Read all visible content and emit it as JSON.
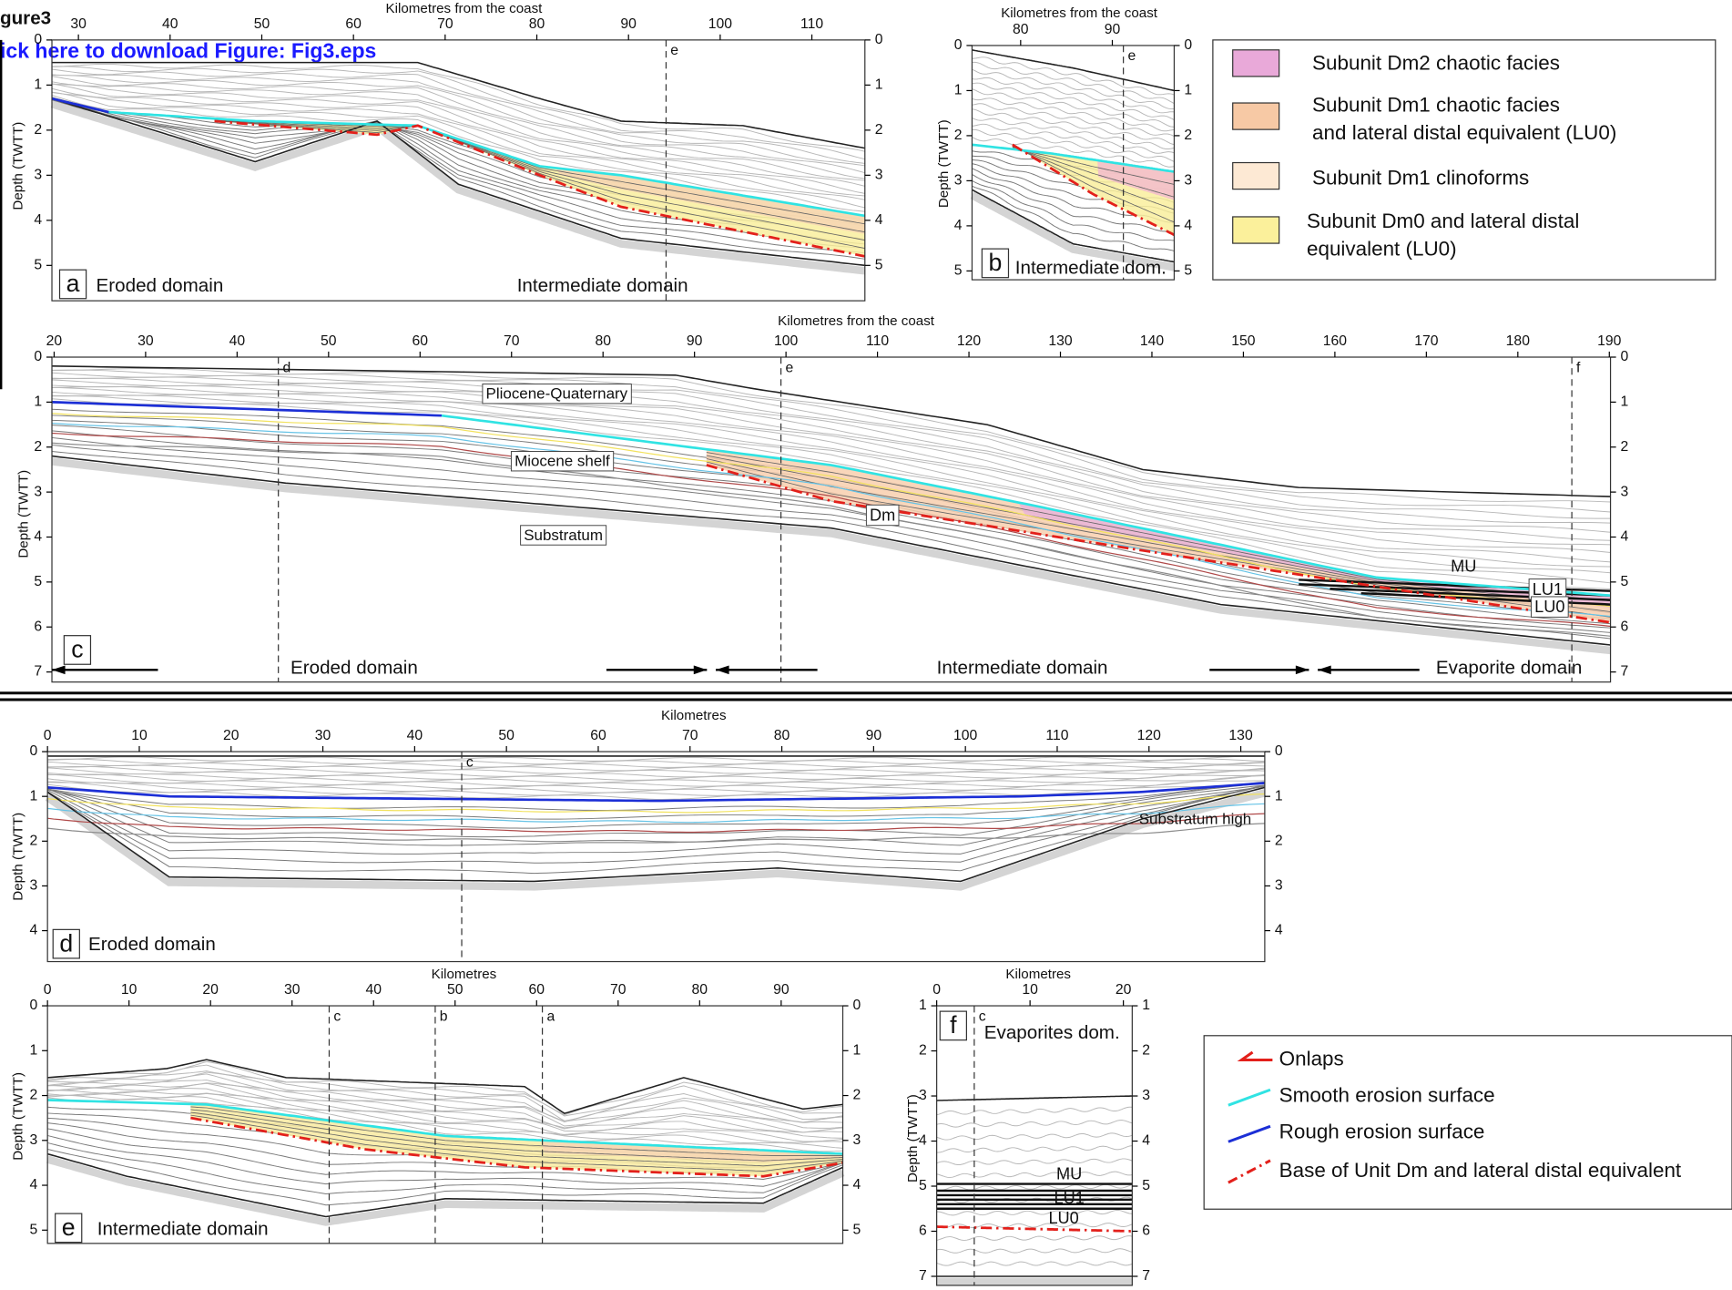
{
  "header": {
    "title": "gure3",
    "link": "ick here to download Figure: Fig3.eps"
  },
  "panels": [
    {
      "label": "a",
      "x_axis_title": "Kilometres from the coast",
      "y_axis_title": "Depth (TWTT)",
      "xticks": [
        30,
        40,
        50,
        60,
        70,
        80,
        90,
        100,
        110
      ],
      "yticks": [
        0,
        1,
        2,
        3,
        4,
        5
      ],
      "domains": [
        "Eroded domain",
        "Intermediate domain"
      ],
      "profile_markers": [
        "e"
      ]
    },
    {
      "label": "b",
      "x_axis_title": "Kilometres from the coast",
      "y_axis_title": "Depth (TWTT)",
      "xticks": [
        80,
        90
      ],
      "yticks": [
        0,
        1,
        2,
        3,
        4,
        5
      ],
      "domains": [
        "Intermediate dom."
      ],
      "profile_markers": [
        "e"
      ]
    },
    {
      "label": "c",
      "x_axis_title": "Kilometres from the coast",
      "y_axis_title": "Depth (TWTT)",
      "xticks": [
        20,
        30,
        40,
        50,
        60,
        70,
        80,
        90,
        100,
        110,
        120,
        130,
        140,
        150,
        160,
        170,
        180,
        190
      ],
      "yticks": [
        0,
        1,
        2,
        3,
        4,
        5,
        6,
        7
      ],
      "domains": [
        "Eroded domain",
        "Intermediate domain",
        "Evaporite domain"
      ],
      "profile_markers": [
        "d",
        "e",
        "f"
      ],
      "annotations": [
        "Pliocene-Quaternary",
        "Miocene shelf",
        "Substratum",
        "Dm",
        "MU",
        "LU1",
        "LU0"
      ]
    },
    {
      "label": "d",
      "x_axis_title": "Kilometres",
      "y_axis_title": "Depth (TWTT)",
      "xticks": [
        0,
        10,
        20,
        30,
        40,
        50,
        60,
        70,
        80,
        90,
        100,
        110,
        120,
        130
      ],
      "yticks": [
        0,
        1,
        2,
        3,
        4
      ],
      "domains": [
        "Eroded domain"
      ],
      "profile_markers": [
        "c"
      ],
      "annotations": [
        "Substratum high"
      ]
    },
    {
      "label": "e",
      "x_axis_title": "Kilometres",
      "y_axis_title": "Depth (TWTT)",
      "xticks": [
        0,
        10,
        20,
        30,
        40,
        50,
        60,
        70,
        80,
        90
      ],
      "yticks": [
        0,
        1,
        2,
        3,
        4,
        5
      ],
      "domains": [
        "Intermediate domain"
      ],
      "profile_markers": [
        "c",
        "b",
        "a"
      ]
    },
    {
      "label": "f",
      "x_axis_title": "Kilometres",
      "y_axis_title": "Depth (TWTT)",
      "xticks": [
        0,
        10,
        20
      ],
      "yticks": [
        1,
        2,
        3,
        4,
        5,
        6,
        7
      ],
      "domains": [
        "Evaporites dom."
      ],
      "profile_markers": [
        "c"
      ],
      "annotations": [
        "MU",
        "LU1",
        "LU0"
      ]
    }
  ],
  "legend_units": {
    "items": [
      {
        "lines": [
          "Subunit Dm2 chaotic facies"
        ]
      },
      {
        "lines": [
          "Subunit Dm1 chaotic facies",
          "and lateral distal equivalent (LU0)"
        ]
      },
      {
        "lines": [
          "Subunit Dm1 clinoforms"
        ]
      },
      {
        "lines": [
          "Subunit Dm0 and lateral distal",
          "equivalent (LU0)"
        ]
      }
    ]
  },
  "legend_symbols": {
    "items": [
      "Onlaps",
      "Smooth erosion surface",
      "Rough erosion surface",
      "Base of Unit Dm and lateral distal equivalent"
    ]
  }
}
